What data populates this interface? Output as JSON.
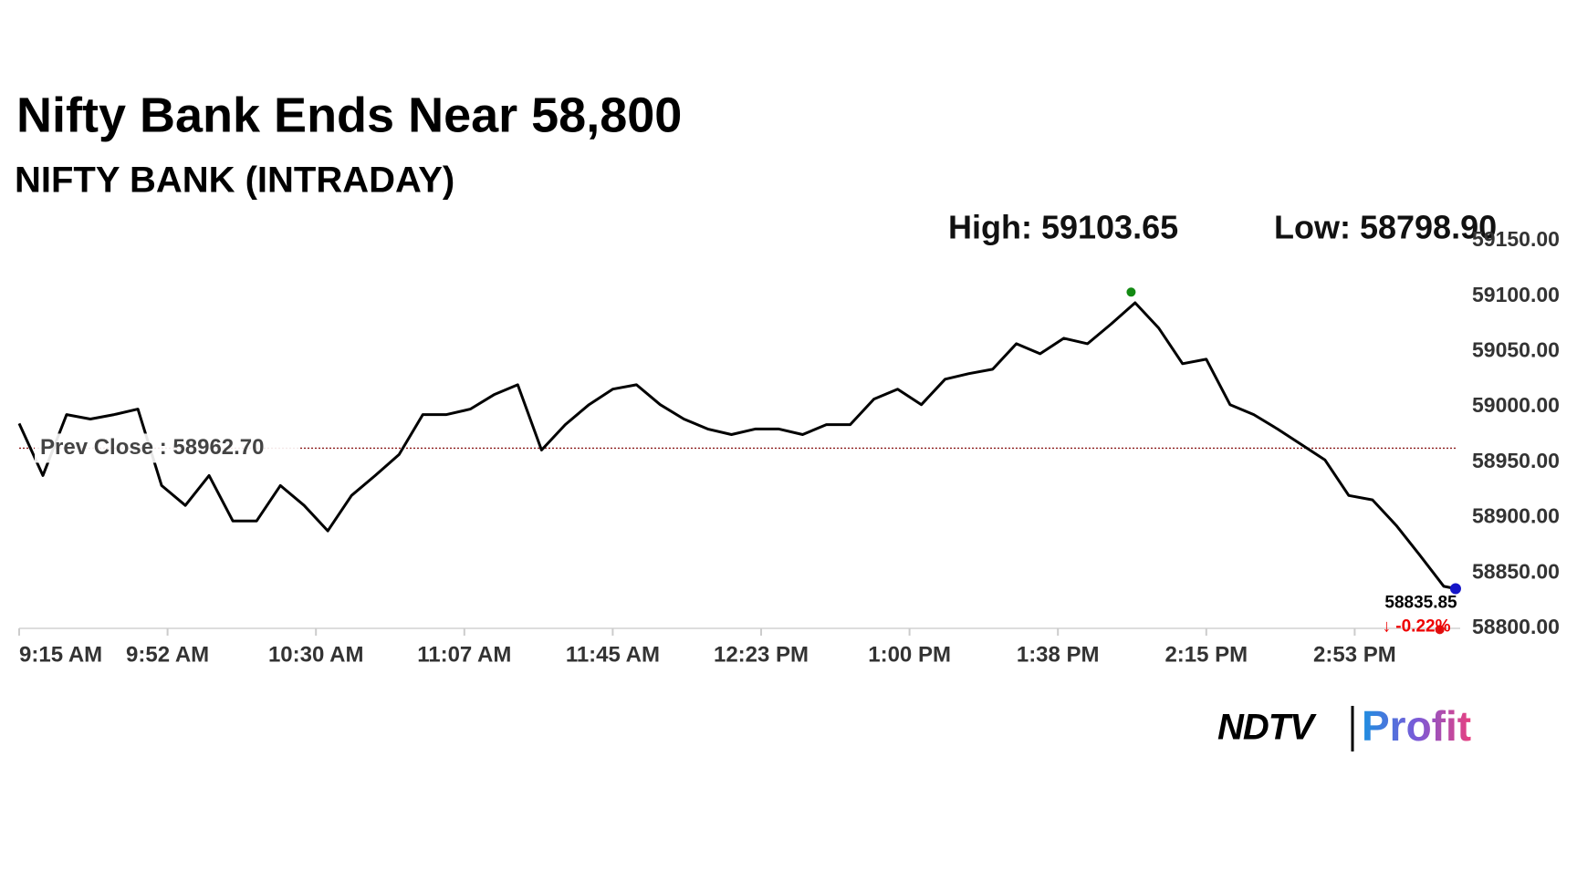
{
  "chart_data": {
    "type": "line",
    "title": "Nifty Bank Ends Near 58,800",
    "subtitle": "NIFTY BANK (INTRADAY)",
    "xlim": [
      0,
      375
    ],
    "xticks": [
      {
        "value": 0,
        "label": "9:15 AM"
      },
      {
        "value": 37.5,
        "label": "9:52 AM"
      },
      {
        "value": 75,
        "label": "10:30 AM"
      },
      {
        "value": 112.5,
        "label": "11:07 AM"
      },
      {
        "value": 150,
        "label": "11:45 AM"
      },
      {
        "value": 187.5,
        "label": "12:23 PM"
      },
      {
        "value": 225,
        "label": "1:00 PM"
      },
      {
        "value": 262.5,
        "label": "1:38 PM"
      },
      {
        "value": 300,
        "label": "2:15 PM"
      },
      {
        "value": 337.5,
        "label": "2:53 PM"
      }
    ],
    "ylim": [
      58800,
      59150
    ],
    "yticks": [
      {
        "value": 58800,
        "label": "58800.00"
      },
      {
        "value": 58850,
        "label": "58850.00"
      },
      {
        "value": 58900,
        "label": "58900.00"
      },
      {
        "value": 58950,
        "label": "58950.00"
      },
      {
        "value": 59000,
        "label": "59000.00"
      },
      {
        "value": 59050,
        "label": "59050.00"
      },
      {
        "value": 59100,
        "label": "59100.00"
      },
      {
        "value": 59150,
        "label": "59150.00"
      }
    ],
    "grid": false,
    "x": [
      0,
      6,
      12,
      18,
      24,
      30,
      36,
      42,
      48,
      54,
      60,
      66,
      72,
      78,
      84,
      90,
      96,
      102,
      108,
      114,
      120,
      126,
      132,
      138,
      144,
      150,
      156,
      162,
      168,
      174,
      180,
      186,
      192,
      198,
      204,
      210,
      216,
      222,
      228,
      234,
      240,
      246,
      252,
      258,
      264,
      270,
      276,
      282,
      288,
      294,
      300,
      306,
      312,
      318,
      324,
      330,
      336,
      342,
      348,
      354,
      360,
      363
    ],
    "series": [
      {
        "color": "#000000",
        "values": [
          58985,
          58938,
          58993,
          58989,
          58993,
          58998,
          58929,
          58911,
          58938,
          58897,
          58897,
          58929,
          58911,
          58888,
          58920,
          58938,
          58957,
          58993,
          58993,
          58998,
          59011,
          59020,
          58961,
          58984,
          59002,
          59016,
          59020,
          59002,
          58989,
          58980,
          58975,
          58980,
          58980,
          58975,
          58984,
          58984,
          59007,
          59016,
          59002,
          59025,
          59030,
          59034,
          59057,
          59048,
          59062,
          59057,
          59075,
          59094,
          59071,
          59039,
          59043,
          59002,
          58993,
          58980,
          58966,
          58952,
          58920,
          58916,
          58893,
          58866,
          58838,
          58835.85
        ]
      }
    ],
    "prev_close": {
      "value": 58962.7,
      "label": "Prev Close : 58962.70",
      "color": "#8b1a1a"
    },
    "markers": [
      {
        "value": 59103.65,
        "x": 281,
        "label": "High: 59103.65",
        "color": "#138a13"
      },
      {
        "value": 58798.9,
        "x": 359,
        "label": "Low: 58798.90",
        "color": "#e01010"
      }
    ],
    "last": {
      "value": 58835.85,
      "x": 363,
      "color": "#1515c8",
      "change": -0.22,
      "change_label": "↓ -0.22%"
    },
    "logo": {
      "brand": "NDTV",
      "product": "Profit"
    }
  }
}
